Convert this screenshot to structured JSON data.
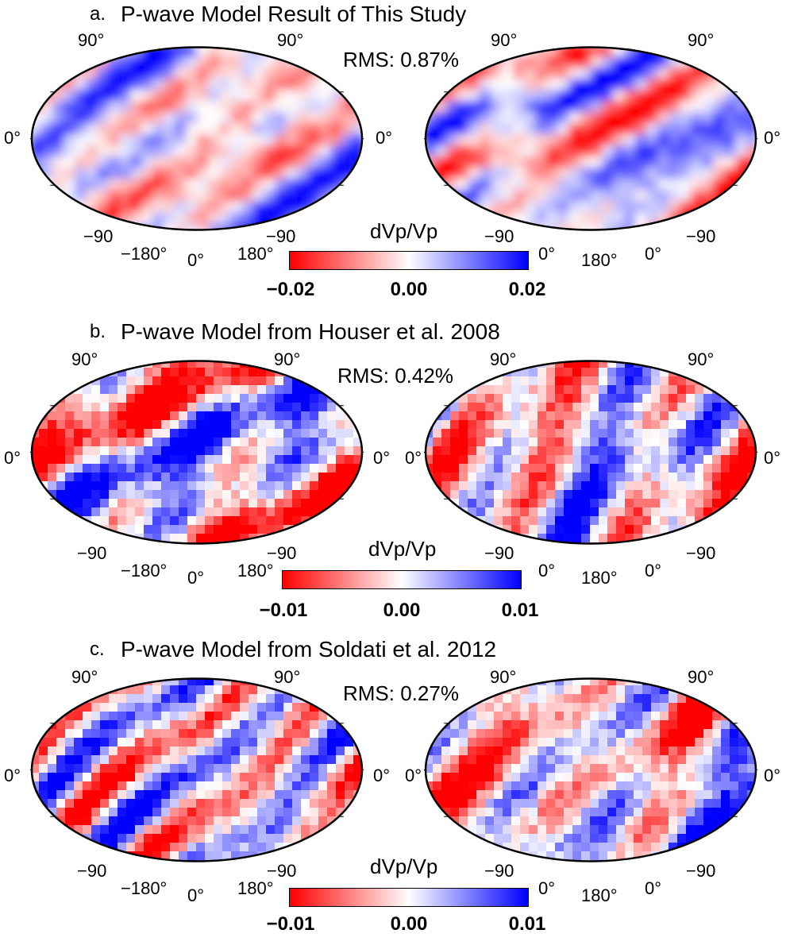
{
  "colors": {
    "negative": "#ff0000",
    "zero": "#ffffff",
    "positive": "#0000ff"
  },
  "panels": [
    {
      "label": "a.",
      "title": "P-wave Model Result of This Study",
      "rms": "RMS: 0.87%",
      "colorbar": {
        "title": "dVp/Vp",
        "min_label": "−0.02",
        "mid_label": "0.00",
        "max_label": "0.02",
        "min": -0.02,
        "max": 0.02
      },
      "left_map": {
        "lat_top": "90°",
        "lat_mid": "0°",
        "lat_bottom": "−90",
        "lon_left": "−180°",
        "lon_mid": "0°",
        "lon_right": "180°"
      },
      "right_map": {
        "lat_top": "90°",
        "lat_mid": "0°",
        "lat_bottom": "−90",
        "lon_left": "0°",
        "lon_mid": "180°",
        "lon_right": "0°"
      }
    },
    {
      "label": "b.",
      "title": "P-wave Model from Houser et al. 2008",
      "rms": "RMS: 0.42%",
      "colorbar": {
        "title": "dVp/Vp",
        "min_label": "−0.01",
        "mid_label": "0.00",
        "max_label": "0.01",
        "min": -0.01,
        "max": 0.01
      },
      "left_map": {
        "lat_top": "90°",
        "lat_mid": "0°",
        "lat_bottom": "−90",
        "lon_left": "−180°",
        "lon_mid": "0°",
        "lon_right": "180°"
      },
      "right_map": {
        "lat_top": "90°",
        "lat_mid": "0°",
        "lat_bottom": "−90",
        "lon_left": "0°",
        "lon_mid": "180°",
        "lon_right": "0°"
      }
    },
    {
      "label": "c.",
      "title": "P-wave Model from Soldati et al. 2012",
      "rms": "RMS: 0.27%",
      "colorbar": {
        "title": "dVp/Vp",
        "min_label": "−0.01",
        "mid_label": "0.00",
        "max_label": "0.01",
        "min": -0.01,
        "max": 0.01
      },
      "left_map": {
        "lat_top": "90°",
        "lat_mid": "0°",
        "lat_bottom": "−90",
        "lon_left": "−180°",
        "lon_mid": "0°",
        "lon_right": "180°"
      },
      "right_map": {
        "lat_top": "90°",
        "lat_mid": "0°",
        "lat_bottom": "−90",
        "lon_left": "0°",
        "lon_mid": "180°",
        "lon_right": "0°"
      }
    }
  ]
}
